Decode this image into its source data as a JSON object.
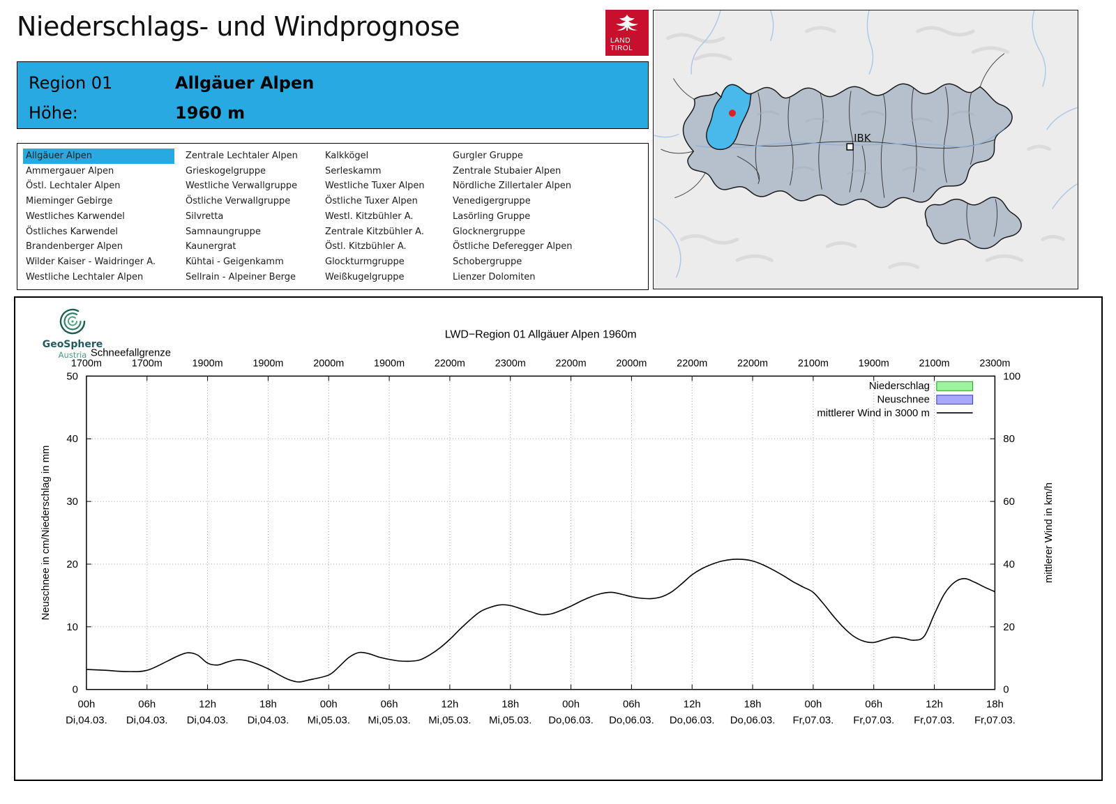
{
  "header": {
    "title": "Niederschlags- und Windprognose",
    "logo": {
      "line1": "LAND",
      "line2": "TIROL"
    }
  },
  "region_info": {
    "region_label": "Region 01",
    "region_name": "Allgäuer Alpen",
    "altitude_label": "Höhe:",
    "altitude_value": "1960 m"
  },
  "region_list": {
    "selected": "Allgäuer Alpen",
    "columns": [
      [
        "Allgäuer Alpen",
        "Ammergauer Alpen",
        "Östl. Lechtaler Alpen",
        "Mieminger Gebirge",
        "Westliches Karwendel",
        "Östliches Karwendel",
        "Brandenberger Alpen",
        "Wilder Kaiser - Waidringer A.",
        "Westliche Lechtaler Alpen"
      ],
      [
        "Zentrale Lechtaler Alpen",
        "Grieskogelgruppe",
        "Westliche Verwallgruppe",
        "Östliche Verwallgruppe",
        "Silvretta",
        "Samnaungruppe",
        "Kaunergrat",
        "Kühtai - Geigenkamm",
        "Sellrain - Alpeiner Berge"
      ],
      [
        "Kalkkögel",
        "Serleskamm",
        "Westliche Tuxer Alpen",
        "Östliche Tuxer Alpen",
        "Westl. Kitzbühler A.",
        "Zentrale Kitzbühler A.",
        "Östl. Kitzbühler A.",
        "Glockturmgruppe",
        "Weißkugelgruppe"
      ],
      [
        "Gurgler Gruppe",
        "Zentrale Stubaier Alpen",
        "Nördliche Zillertaler Alpen",
        "Venedigergruppe",
        "Lasörling Gruppe",
        "Glocknergruppe",
        "Östliche Deferegger Alpen",
        "Schobergruppe",
        "Lienzer Dolomiten"
      ]
    ]
  },
  "map": {
    "city_label": "IBK"
  },
  "geosphere": {
    "name": "GeoSphere",
    "sub": "Austria"
  },
  "chart_data": {
    "type": "line",
    "title": "LWD−Region 01 Allgäuer Alpen 1960m",
    "snowline_label": "Schneefallgrenze",
    "snowline_values": [
      "1700m",
      "1700m",
      "1900m",
      "1900m",
      "2000m",
      "1900m",
      "2200m",
      "2300m",
      "2200m",
      "2000m",
      "2200m",
      "2200m",
      "2100m",
      "1900m",
      "2100m",
      "2300m"
    ],
    "xtick_hours": [
      "00h",
      "06h",
      "12h",
      "18h",
      "00h",
      "06h",
      "12h",
      "18h",
      "00h",
      "06h",
      "12h",
      "18h",
      "00h",
      "06h",
      "12h",
      "18h"
    ],
    "xtick_dates": [
      "Di,04.03.",
      "Di,04.03.",
      "Di,04.03.",
      "Di,04.03.",
      "Mi,05.03.",
      "Mi,05.03.",
      "Mi,05.03.",
      "Mi,05.03.",
      "Do,06.03.",
      "Do,06.03.",
      "Do,06.03.",
      "Do,06.03.",
      "Fr,07.03.",
      "Fr,07.03.",
      "Fr,07.03.",
      "Fr,07.03."
    ],
    "xlim_hours": [
      0,
      90
    ],
    "ylabel_left": "Neuschnee in cm/Niederschlag in mm",
    "ylabel_right": "mittlerer Wind in km/h",
    "ylim_left": [
      0,
      50
    ],
    "ylim_right": [
      0,
      100
    ],
    "yticks_left": [
      0,
      10,
      20,
      30,
      40,
      50
    ],
    "yticks_right": [
      0,
      20,
      40,
      60,
      80,
      100
    ],
    "grid": true,
    "legend": [
      {
        "label": "Niederschlag",
        "swatch": "box",
        "fill": "#9cf59c",
        "stroke": "#18a018"
      },
      {
        "label": "Neuschnee",
        "swatch": "box",
        "fill": "#a8a8f8",
        "stroke": "#3838c8"
      },
      {
        "label": "mittlerer Wind in 3000 m",
        "swatch": "line",
        "stroke": "#000000"
      }
    ],
    "precipitation_bars": [],
    "new_snow_bars": [],
    "series": [
      {
        "name": "mittlerer Wind in 3000 m",
        "axis": "right",
        "unit": "km/h",
        "points_h_kmh": [
          [
            0,
            6.4
          ],
          [
            2,
            6.1
          ],
          [
            4,
            5.7
          ],
          [
            6,
            6.1
          ],
          [
            8,
            9.0
          ],
          [
            9,
            10.6
          ],
          [
            10,
            11.7
          ],
          [
            11,
            11.0
          ],
          [
            12,
            8.4
          ],
          [
            13,
            7.8
          ],
          [
            14,
            8.8
          ],
          [
            15,
            9.5
          ],
          [
            16,
            9.1
          ],
          [
            17,
            8.0
          ],
          [
            18,
            6.6
          ],
          [
            19,
            4.8
          ],
          [
            20,
            3.2
          ],
          [
            21,
            2.4
          ],
          [
            22,
            3.0
          ],
          [
            24,
            4.6
          ],
          [
            25,
            7.2
          ],
          [
            26,
            10.2
          ],
          [
            27,
            11.8
          ],
          [
            28,
            11.4
          ],
          [
            29,
            10.3
          ],
          [
            30,
            9.6
          ],
          [
            31,
            9.1
          ],
          [
            32,
            9.0
          ],
          [
            33,
            9.4
          ],
          [
            34,
            11.0
          ],
          [
            35,
            13.2
          ],
          [
            36,
            16.0
          ],
          [
            37,
            19.2
          ],
          [
            38,
            22.2
          ],
          [
            39,
            24.8
          ],
          [
            40,
            26.2
          ],
          [
            41,
            27.0
          ],
          [
            42,
            26.8
          ],
          [
            43,
            25.8
          ],
          [
            44,
            24.8
          ],
          [
            45,
            23.9
          ],
          [
            46,
            24.1
          ],
          [
            47,
            25.2
          ],
          [
            48,
            26.6
          ],
          [
            49,
            28.2
          ],
          [
            50,
            29.6
          ],
          [
            51,
            30.6
          ],
          [
            52,
            31.0
          ],
          [
            53,
            30.4
          ],
          [
            54,
            29.6
          ],
          [
            55,
            29.1
          ],
          [
            56,
            29.0
          ],
          [
            57,
            29.6
          ],
          [
            58,
            31.2
          ],
          [
            59,
            33.8
          ],
          [
            60,
            36.6
          ],
          [
            61,
            38.6
          ],
          [
            62,
            40.0
          ],
          [
            63,
            41.0
          ],
          [
            64,
            41.5
          ],
          [
            65,
            41.5
          ],
          [
            66,
            41.0
          ],
          [
            67,
            39.8
          ],
          [
            68,
            38.2
          ],
          [
            69,
            36.4
          ],
          [
            70,
            34.4
          ],
          [
            71,
            32.7
          ],
          [
            72,
            31.0
          ],
          [
            73,
            27.4
          ],
          [
            74,
            23.4
          ],
          [
            75,
            19.8
          ],
          [
            76,
            17.0
          ],
          [
            77,
            15.4
          ],
          [
            78,
            15.0
          ],
          [
            79,
            15.9
          ],
          [
            80,
            16.7
          ],
          [
            81,
            16.3
          ],
          [
            82,
            15.7
          ],
          [
            83,
            17.0
          ],
          [
            84,
            24.0
          ],
          [
            85,
            30.5
          ],
          [
            86,
            34.2
          ],
          [
            87,
            35.4
          ],
          [
            88,
            34.2
          ],
          [
            89,
            32.6
          ],
          [
            90,
            31.2
          ]
        ]
      }
    ]
  }
}
